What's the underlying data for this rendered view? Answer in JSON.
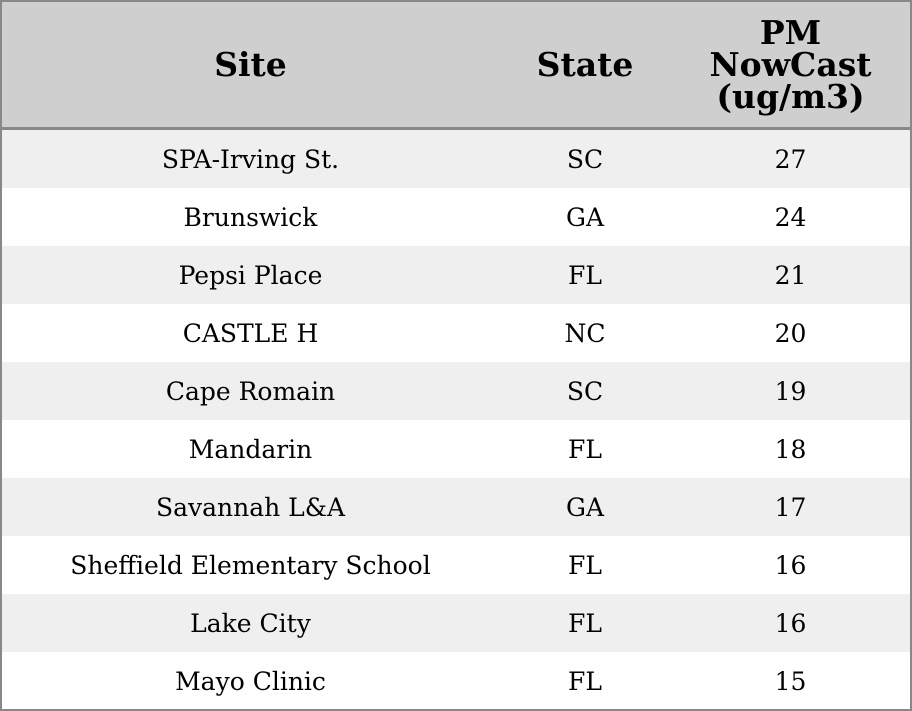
{
  "chart_data": {
    "type": "table",
    "columns": [
      "Site",
      "State",
      "PM NowCast (ug/m3)"
    ],
    "header_lines": {
      "site": [
        "Site"
      ],
      "state": [
        "State"
      ],
      "pm": [
        "PM",
        "NowCast",
        "(ug/m3)"
      ]
    },
    "rows": [
      {
        "site": "SPA-Irving St.",
        "state": "SC",
        "pm": 27
      },
      {
        "site": "Brunswick",
        "state": "GA",
        "pm": 24
      },
      {
        "site": "Pepsi Place",
        "state": "FL",
        "pm": 21
      },
      {
        "site": "CASTLE H",
        "state": "NC",
        "pm": 20
      },
      {
        "site": "Cape Romain",
        "state": "SC",
        "pm": 19
      },
      {
        "site": "Mandarin",
        "state": "FL",
        "pm": 18
      },
      {
        "site": "Savannah L&A",
        "state": "GA",
        "pm": 17
      },
      {
        "site": "Sheffield Elementary School",
        "state": "FL",
        "pm": 16
      },
      {
        "site": "Lake City",
        "state": "FL",
        "pm": 16
      },
      {
        "site": "Mayo Clinic",
        "state": "FL",
        "pm": 15
      }
    ]
  },
  "colors": {
    "header_bg": "#cfcfcf",
    "row_alt_bg": "#efefef",
    "row_bg": "#ffffff",
    "border": "#888888"
  }
}
